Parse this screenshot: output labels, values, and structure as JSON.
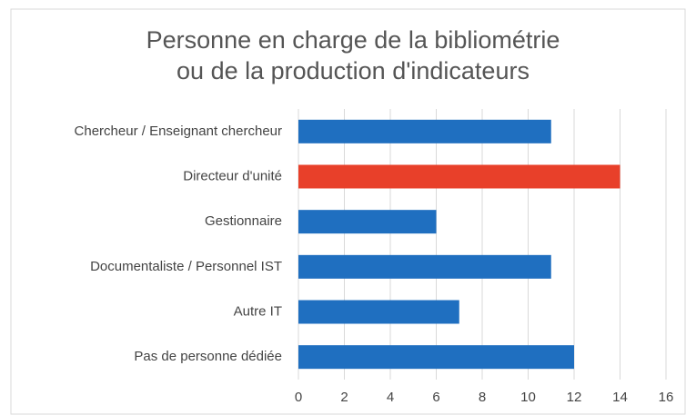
{
  "chart_data": {
    "type": "hbar",
    "title": [
      "Personne en charge de la bibliométrie",
      "ou de la production d'indicateurs"
    ],
    "categories": [
      "Chercheur / Enseignant chercheur",
      "Directeur d'unité",
      "Gestionnaire",
      "Documentaliste / Personnel IST",
      "Autre IT",
      "Pas de personne dédiée"
    ],
    "values": [
      11,
      14,
      6,
      11,
      7,
      12
    ],
    "colors": [
      "#1f6fc0",
      "#e8402a",
      "#1f6fc0",
      "#1f6fc0",
      "#1f6fc0",
      "#1f6fc0"
    ],
    "xlim": [
      0,
      16
    ],
    "xticks": [
      0,
      2,
      4,
      6,
      8,
      10,
      12,
      14,
      16
    ],
    "grid": true
  }
}
